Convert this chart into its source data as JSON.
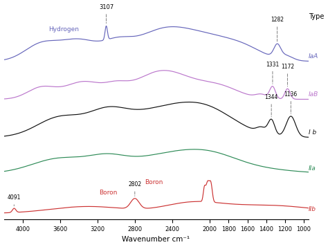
{
  "title": "",
  "xlabel": "Wavenumber cm⁻¹",
  "xlim": [
    4200,
    950
  ],
  "ylim": [
    -0.15,
    5.2
  ],
  "background_color": "#ffffff",
  "series_labels": [
    "IaA",
    "IaB",
    "I b",
    "IIa",
    "IIb"
  ],
  "series_colors": [
    "#6666bb",
    "#bb77cc",
    "#111111",
    "#2e8b57",
    "#cc3333"
  ],
  "offsets": [
    3.8,
    2.85,
    1.9,
    1.0,
    0.0
  ],
  "type_label": "Type",
  "xticks": [
    4000,
    3600,
    3200,
    2800,
    2400,
    2000,
    1800,
    1600,
    1400,
    1200,
    1000
  ]
}
